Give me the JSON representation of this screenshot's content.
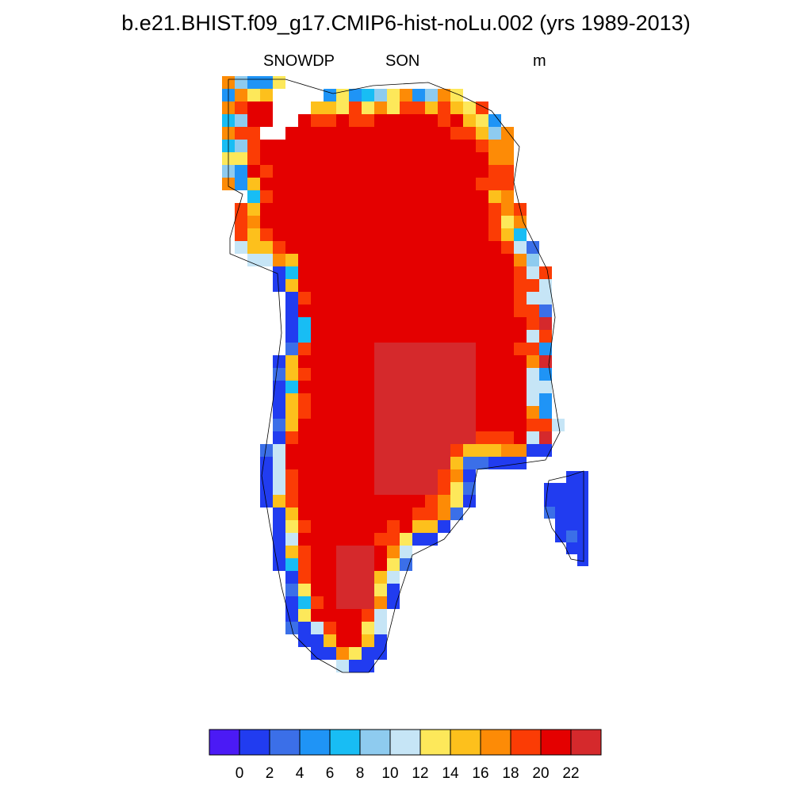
{
  "title": "b.e21.BHIST.f09_g17.CMIP6-hist-noLu.002 (yrs 1989-2013)",
  "left_string": "SNOWDP",
  "center_string": "SON",
  "right_string": "m",
  "colorbar": {
    "colors": [
      "#4b1af5",
      "#213cf0",
      "#3b6fe8",
      "#1f94f6",
      "#18bdf4",
      "#8ecbef",
      "#c6e5f6",
      "#fde85a",
      "#fdc01c",
      "#fd8b06",
      "#fb3c05",
      "#e40000",
      "#d5292c"
    ],
    "tick_labels": [
      "0",
      "2",
      "4",
      "6",
      "8",
      "10",
      "12",
      "14",
      "16",
      "18",
      "20",
      "22"
    ]
  },
  "chart_data": {
    "type": "heatmap",
    "variable": "SNOWDP",
    "season": "SON",
    "units": "m",
    "levels": [
      0,
      2,
      4,
      6,
      8,
      10,
      12,
      14,
      16,
      18,
      20,
      22
    ],
    "region_values": [
      {
        "region": "interior ice sheet",
        "range": [
          20,
          22
        ]
      },
      {
        "region": "central-south interior",
        "range": [
          22,
          24
        ]
      },
      {
        "region": "ice sheet margin",
        "range": [
          12,
          20
        ]
      },
      {
        "region": "western coastal strip",
        "range": [
          0,
          4
        ]
      },
      {
        "region": "eastern coast",
        "range": [
          4,
          12
        ]
      },
      {
        "region": "northern coast",
        "range": [
          6,
          20
        ]
      },
      {
        "region": "Iceland (east)",
        "range": [
          0,
          2
        ]
      }
    ]
  }
}
